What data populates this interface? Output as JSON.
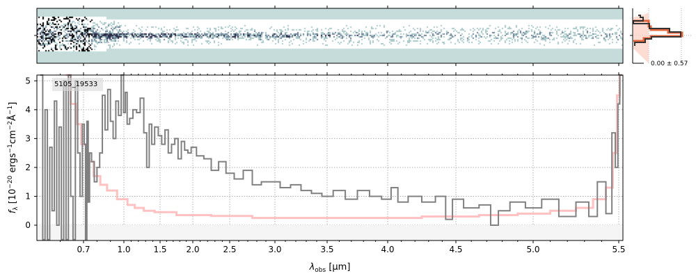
{
  "chart_data": {
    "type": "line",
    "object_id": "5105_19533",
    "xlabel_main": "λ",
    "xlabel_sub": "obs",
    "xlabel_unit": " [μm]",
    "ylabel": "f_λ [10^-20 ergs^-1 cm^-2 Å^-1]",
    "ylabel_parts": {
      "f": "f",
      "lam": "λ",
      "a": " [10",
      "e1": "−20",
      "b": " ergs",
      "e2": "−1",
      "c": "cm",
      "e3": "−2",
      "d": "Å",
      "e4": "−1",
      "end": "]"
    },
    "xlim": [
      0.5,
      5.52
    ],
    "ylim": [
      -0.53,
      5.2
    ],
    "xticks": [
      0.7,
      1.0,
      1.5,
      2.0,
      2.5,
      3.0,
      3.5,
      4.0,
      4.5,
      5.0,
      5.5
    ],
    "xtick_labels": [
      "0.7",
      "1.0",
      "1.5",
      "2.0",
      "2.5",
      "3.0",
      "3.5",
      "4.0",
      "4.5",
      "5.0",
      "5.5"
    ],
    "yticks": [
      0,
      1,
      2,
      3,
      4,
      5
    ],
    "ytick_labels": [
      "0",
      "1",
      "2",
      "3",
      "4",
      "5"
    ],
    "grid": true,
    "series": [
      {
        "name": "flux",
        "color": "#808080",
        "x": [
          0.52,
          0.53,
          0.54,
          0.55,
          0.56,
          0.57,
          0.58,
          0.59,
          0.6,
          0.61,
          0.62,
          0.63,
          0.64,
          0.65,
          0.66,
          0.67,
          0.68,
          0.69,
          0.7,
          0.71,
          0.72,
          0.73,
          0.74,
          0.75,
          0.77,
          0.79,
          0.81,
          0.83,
          0.85,
          0.87,
          0.89,
          0.91,
          0.93,
          0.95,
          0.97,
          0.99,
          1.01,
          1.03,
          1.06,
          1.1,
          1.15,
          1.2,
          1.25,
          1.3,
          1.33,
          1.37,
          1.4,
          1.45,
          1.5,
          1.55,
          1.6,
          1.65,
          1.7,
          1.75,
          1.8,
          1.85,
          1.9,
          1.95,
          2.0,
          2.1,
          2.2,
          2.3,
          2.4,
          2.5,
          2.6,
          2.7,
          2.8,
          2.9,
          3.0,
          3.1,
          3.2,
          3.3,
          3.4,
          3.5,
          3.6,
          3.7,
          3.8,
          3.9,
          4.0,
          4.05,
          4.1,
          4.2,
          4.3,
          4.4,
          4.45,
          4.5,
          4.6,
          4.7,
          4.75,
          4.8,
          4.9,
          5.0,
          5.1,
          5.2,
          5.3,
          5.35,
          5.4,
          5.45,
          5.47,
          5.49,
          5.5,
          5.51
        ],
        "y": [
          5.2,
          -0.5,
          4.0,
          -0.5,
          2.7,
          0.5,
          4.3,
          0.0,
          3.4,
          -0.5,
          5.0,
          -0.5,
          5.2,
          1.0,
          -0.5,
          5.0,
          2.5,
          1.0,
          3.5,
          2.8,
          -0.5,
          3.6,
          0.8,
          2.5,
          2.2,
          1.5,
          2.0,
          2.5,
          4.5,
          3.3,
          4.7,
          3.6,
          3.0,
          4.3,
          3.8,
          5.2,
          3.9,
          4.6,
          3.5,
          3.7,
          4.0,
          3.9,
          4.4,
          3.2,
          2.0,
          3.5,
          2.8,
          3.4,
          3.1,
          2.8,
          3.3,
          2.5,
          2.8,
          3.0,
          2.3,
          2.9,
          2.6,
          2.5,
          2.7,
          2.4,
          2.3,
          1.9,
          2.2,
          1.8,
          1.6,
          1.9,
          1.4,
          1.5,
          1.5,
          1.3,
          1.4,
          1.2,
          1.1,
          1.0,
          1.2,
          0.9,
          1.2,
          1.0,
          0.9,
          1.3,
          0.8,
          1.0,
          0.8,
          1.0,
          0.2,
          0.9,
          0.6,
          0.7,
          0.0,
          0.5,
          0.8,
          0.6,
          0.9,
          0.3,
          0.8,
          0.3,
          1.5,
          0.4,
          3.2,
          2.0,
          4.2,
          5.2
        ]
      },
      {
        "name": "error",
        "color": "#ffb6b6",
        "x": [
          0.63,
          0.66,
          0.68,
          0.7,
          0.75,
          0.8,
          0.85,
          0.9,
          1.0,
          1.1,
          1.2,
          1.35,
          1.5,
          2.0,
          2.5,
          3.0,
          3.5,
          4.0,
          4.5,
          4.8,
          5.0,
          5.2,
          5.3,
          5.4,
          5.45,
          5.48,
          5.5,
          5.51
        ],
        "y": [
          5.2,
          4.2,
          3.5,
          2.8,
          2.2,
          1.7,
          1.4,
          1.2,
          0.9,
          0.7,
          0.6,
          0.5,
          0.45,
          0.35,
          0.32,
          0.25,
          0.25,
          0.25,
          0.3,
          0.35,
          0.4,
          0.5,
          0.6,
          0.9,
          1.3,
          2.5,
          4.5,
          5.2
        ]
      }
    ],
    "spectrum2d_panel": {
      "colormap": "bone_r",
      "background": "#c5dcda"
    },
    "profile_panel": {
      "label": "0.00 ± 0.57",
      "line_color": "#333333",
      "fit_color": "#e0653a"
    }
  }
}
